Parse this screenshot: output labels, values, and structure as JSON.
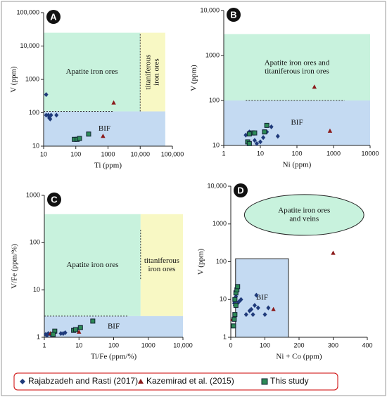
{
  "chart_data": [
    {
      "type": "scatter",
      "label": "A",
      "xlabel": "Ti  (ppm)",
      "ylabel": "V  (ppm)",
      "xscale": "log",
      "yscale": "log",
      "xlim": [
        10,
        100000
      ],
      "ylim": [
        10,
        100000
      ],
      "xticks": [
        10,
        100,
        1000,
        {
          "value": 10000,
          "label": "10,000"
        },
        {
          "value": 100000,
          "label": "100,000"
        }
      ],
      "yticks": [
        10,
        100,
        1000,
        {
          "value": 10000,
          "label": "10,000"
        },
        {
          "value": 100000,
          "label": "100,000"
        }
      ],
      "regions": [
        {
          "label": [
            "Apatite iron ores"
          ],
          "shape": "rect",
          "x": [
            10,
            10000
          ],
          "y": [
            110,
            25000
          ],
          "color": "#c8f2dd"
        },
        {
          "label": [
            "titaniferous",
            "iron ores"
          ],
          "shape": "rect",
          "x": [
            10000,
            60000
          ],
          "y": [
            110,
            25000
          ],
          "color": "#f8f8c4",
          "rotate": true
        },
        {
          "label": [
            "BIF"
          ],
          "shape": "rect",
          "x": [
            10,
            60000
          ],
          "y": [
            10,
            110
          ],
          "color": "#c4daf2"
        }
      ],
      "dashed_lines": [
        {
          "x": [
            10,
            1500
          ],
          "y": [
            110,
            110
          ]
        },
        {
          "x": [
            10000,
            10000
          ],
          "y": [
            110,
            25000
          ]
        }
      ],
      "series": [
        {
          "name": "Rajabzadeh and Rasti (2017)",
          "marker": "diamond",
          "color": "#1f3a7a",
          "x": [
            12,
            12,
            14,
            15,
            17,
            25,
            16
          ],
          "y": [
            350,
            85,
            85,
            70,
            85,
            85,
            65
          ]
        },
        {
          "name": "Kazemirad et al. (2015)",
          "marker": "triangle",
          "color": "#8b1a1a",
          "x": [
            1500,
            700
          ],
          "y": [
            200,
            20
          ]
        },
        {
          "name": "This study",
          "marker": "square",
          "color": "#2e8b57",
          "x": [
            90,
            110,
            130,
            250
          ],
          "y": [
            16,
            16,
            17,
            23
          ]
        }
      ]
    },
    {
      "type": "scatter",
      "label": "B",
      "xlabel": "Ni  (ppm)",
      "ylabel": "V  (ppm)",
      "xscale": "log",
      "yscale": "log",
      "xlim": [
        1,
        10000
      ],
      "ylim": [
        10,
        10000
      ],
      "xticks": [
        1,
        10,
        100,
        1000,
        10000
      ],
      "yticks": [
        10,
        100,
        1000,
        {
          "value": 10000,
          "label": "10,000"
        }
      ],
      "regions": [
        {
          "label": [
            "Apatite iron ores and",
            "titaniferous iron ores"
          ],
          "shape": "rect",
          "x": [
            1,
            10000
          ],
          "y": [
            100,
            3000
          ],
          "color": "#c8f2dd"
        },
        {
          "label": [
            "BIF"
          ],
          "shape": "rect",
          "x": [
            1,
            10000
          ],
          "y": [
            10,
            100
          ],
          "color": "#c4daf2"
        }
      ],
      "dashed_lines": [
        {
          "x": [
            4,
            2000
          ],
          "y": [
            100,
            100
          ]
        }
      ],
      "series": [
        {
          "name": "Rajabzadeh and Rasti (2017)",
          "marker": "diamond",
          "color": "#1f3a7a",
          "x": [
            4,
            4.5,
            5,
            7,
            8,
            12,
            15,
            20,
            30,
            5,
            10
          ],
          "y": [
            17,
            12,
            20,
            13,
            11,
            15,
            20,
            26,
            16,
            11.5,
            12
          ]
        },
        {
          "name": "Kazemirad et al. (2015)",
          "marker": "triangle",
          "color": "#8b1a1a",
          "x": [
            300,
            800
          ],
          "y": [
            200,
            21
          ]
        },
        {
          "name": "This study",
          "marker": "square",
          "color": "#2e8b57",
          "x": [
            4.5,
            5,
            6,
            7,
            13,
            15,
            5
          ],
          "y": [
            12,
            11,
            19,
            19,
            20,
            28,
            18
          ]
        }
      ]
    },
    {
      "type": "scatter",
      "label": "C",
      "xlabel": "Ti/Fe  (ppm/%)",
      "ylabel": "V/Fe  (ppm/%)",
      "xscale": "log",
      "yscale": "log",
      "xlim": [
        1,
        10000
      ],
      "ylim": [
        1,
        1000
      ],
      "xticks": [
        1,
        10,
        100,
        1000,
        {
          "value": 10000,
          "label": "10,000"
        }
      ],
      "yticks": [
        1,
        10,
        100,
        1000
      ],
      "regions": [
        {
          "label": [
            "Apatite iron ores"
          ],
          "shape": "rect",
          "x": [
            1,
            600
          ],
          "y": [
            2.8,
            400
          ],
          "color": "#c8f2dd"
        },
        {
          "label": [
            "titaniferous",
            "iron ores"
          ],
          "shape": "rect",
          "x": [
            600,
            10000
          ],
          "y": [
            2.8,
            400
          ],
          "color": "#f8f8c4"
        },
        {
          "label": [
            "BIF"
          ],
          "shape": "rect",
          "x": [
            1,
            10000
          ],
          "y": [
            1,
            2.8
          ],
          "color": "#c4daf2"
        }
      ],
      "dashed_lines": [
        {
          "x": [
            1,
            250
          ],
          "y": [
            2.8,
            2.8
          ]
        },
        {
          "x": [
            600,
            600
          ],
          "y": [
            17,
            200
          ]
        }
      ],
      "series": [
        {
          "name": "Rajabzadeh and Rasti (2017)",
          "marker": "diamond",
          "color": "#1f3a7a",
          "x": [
            1.1,
            1.3,
            1.5,
            1.8,
            2,
            3,
            3.5,
            4,
            1.2
          ],
          "y": [
            1.15,
            1.2,
            1.15,
            1.2,
            1.25,
            1.2,
            1.2,
            1.25,
            1.1
          ]
        },
        {
          "name": "Kazemirad et al. (2015)",
          "marker": "triangle",
          "color": "#8b1a1a",
          "x": [
            1.5,
            10
          ],
          "y": [
            1.2,
            1.3
          ]
        },
        {
          "name": "This study",
          "marker": "square",
          "color": "#2e8b57",
          "x": [
            2,
            7,
            8,
            11,
            25,
            1.8
          ],
          "y": [
            1.35,
            1.4,
            1.45,
            1.6,
            2.2,
            1.15
          ]
        }
      ]
    },
    {
      "type": "scatter",
      "label": "D",
      "xlabel": "Ni + Co  (ppm)",
      "ylabel": "V  (ppm)",
      "xscale": "linear",
      "yscale": "log",
      "xlim": [
        0,
        400
      ],
      "ylim": [
        1,
        10000
      ],
      "xticks": [
        0,
        100,
        200,
        300,
        400
      ],
      "yticks": [
        1,
        10,
        100,
        1000,
        {
          "value": 10000,
          "label": "10,000"
        }
      ],
      "regions": [
        {
          "label": [
            "Apatite iron ores",
            "and veins"
          ],
          "shape": "ellipse",
          "x": [
            40,
            390
          ],
          "y": [
            500,
            6000
          ],
          "color": "#c8f2dd"
        },
        {
          "label": [
            "BIF"
          ],
          "shape": "rect",
          "x": [
            14,
            169
          ],
          "y": [
            1,
            120
          ],
          "color": "#c4daf2",
          "border": true
        }
      ],
      "dashed_lines": [],
      "series": [
        {
          "name": "Rajabzadeh and Rasti (2017)",
          "marker": "diamond",
          "color": "#1f3a7a",
          "x": [
            10,
            12,
            15,
            20,
            25,
            30,
            45,
            55,
            60,
            70,
            80,
            100,
            110,
            75,
            65,
            12
          ],
          "y": [
            8,
            10,
            12,
            8,
            9,
            10,
            4,
            5,
            5.5,
            7,
            6,
            4,
            6,
            13,
            4,
            7
          ]
        },
        {
          "name": "Kazemirad et al. (2015)",
          "marker": "triangle",
          "color": "#8b1a1a",
          "x": [
            300,
            125,
            5
          ],
          "y": [
            170,
            5.5,
            3
          ]
        },
        {
          "name": "This study",
          "marker": "square",
          "color": "#2e8b57",
          "x": [
            8,
            10,
            12,
            15,
            15,
            18,
            20,
            12
          ],
          "y": [
            2,
            3,
            4,
            7,
            15,
            18,
            22,
            10
          ]
        }
      ]
    }
  ]
}
